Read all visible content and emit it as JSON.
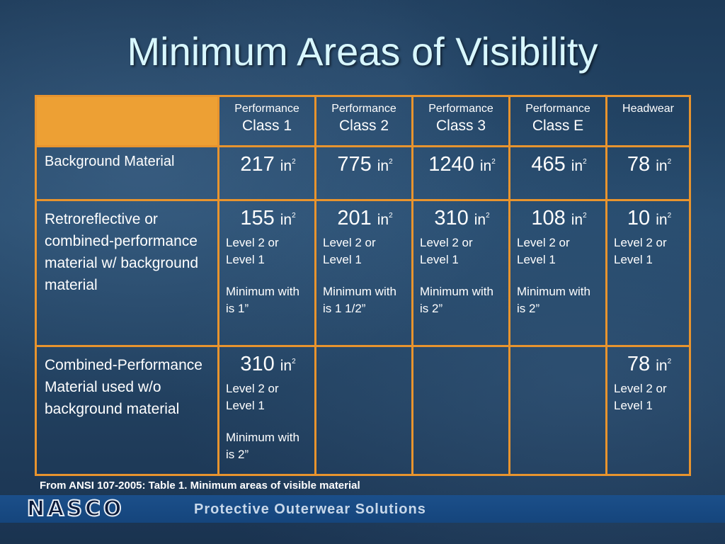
{
  "title": "Minimum Areas of Visibility",
  "columns": [
    {
      "line1": "Performance",
      "line2": "Class 1"
    },
    {
      "line1": "Performance",
      "line2": "Class 2"
    },
    {
      "line1": "Performance",
      "line2": "Class 3"
    },
    {
      "line1": "Performance",
      "line2": "Class E"
    },
    {
      "line1": "Headwear",
      "line2": ""
    }
  ],
  "unit": "in",
  "unit_exp": "2",
  "rows": [
    {
      "label": "Background Material",
      "cells": [
        {
          "value": "217",
          "note1": "",
          "note2": ""
        },
        {
          "value": "775",
          "note1": "",
          "note2": ""
        },
        {
          "value": "1240",
          "note1": "",
          "note2": ""
        },
        {
          "value": "465",
          "note1": "",
          "note2": ""
        },
        {
          "value": "78",
          "note1": "",
          "note2": ""
        }
      ]
    },
    {
      "label": "Retroreflective or combined-performance material w/ background material",
      "cells": [
        {
          "value": "155",
          "note1": "Level 2 or Level 1",
          "note2": "Minimum with is 1”"
        },
        {
          "value": "201",
          "note1": "Level 2 or Level 1",
          "note2": "Minimum with is 1 1/2”"
        },
        {
          "value": "310",
          "note1": "Level 2 or Level 1",
          "note2": "Minimum with is 2”"
        },
        {
          "value": "108",
          "note1": "Level 2 or Level 1",
          "note2": "Minimum with is 2”"
        },
        {
          "value": "10",
          "note1": "Level 2 or Level 1",
          "note2": ""
        }
      ]
    },
    {
      "label": "Combined-Performance Material used w/o background material",
      "cells": [
        {
          "value": "310",
          "note1": "Level 2 or Level 1",
          "note2": "Minimum with is 2”"
        },
        {
          "value": "",
          "note1": "",
          "note2": ""
        },
        {
          "value": "",
          "note1": "",
          "note2": ""
        },
        {
          "value": "",
          "note1": "",
          "note2": ""
        },
        {
          "value": "78",
          "note1": "Level 2 or Level 1",
          "note2": ""
        }
      ]
    }
  ],
  "footnote": "From ANSI 107-2005: Table 1. Minimum areas of visible material",
  "footer": {
    "logo": "NASCO",
    "tagline": "Protective Outerwear Solutions"
  },
  "colors": {
    "title": "#d8f7ff",
    "table_border": "#e8942e",
    "corner_fill": "#eda034",
    "footer_bar": "#1b4f8a"
  }
}
